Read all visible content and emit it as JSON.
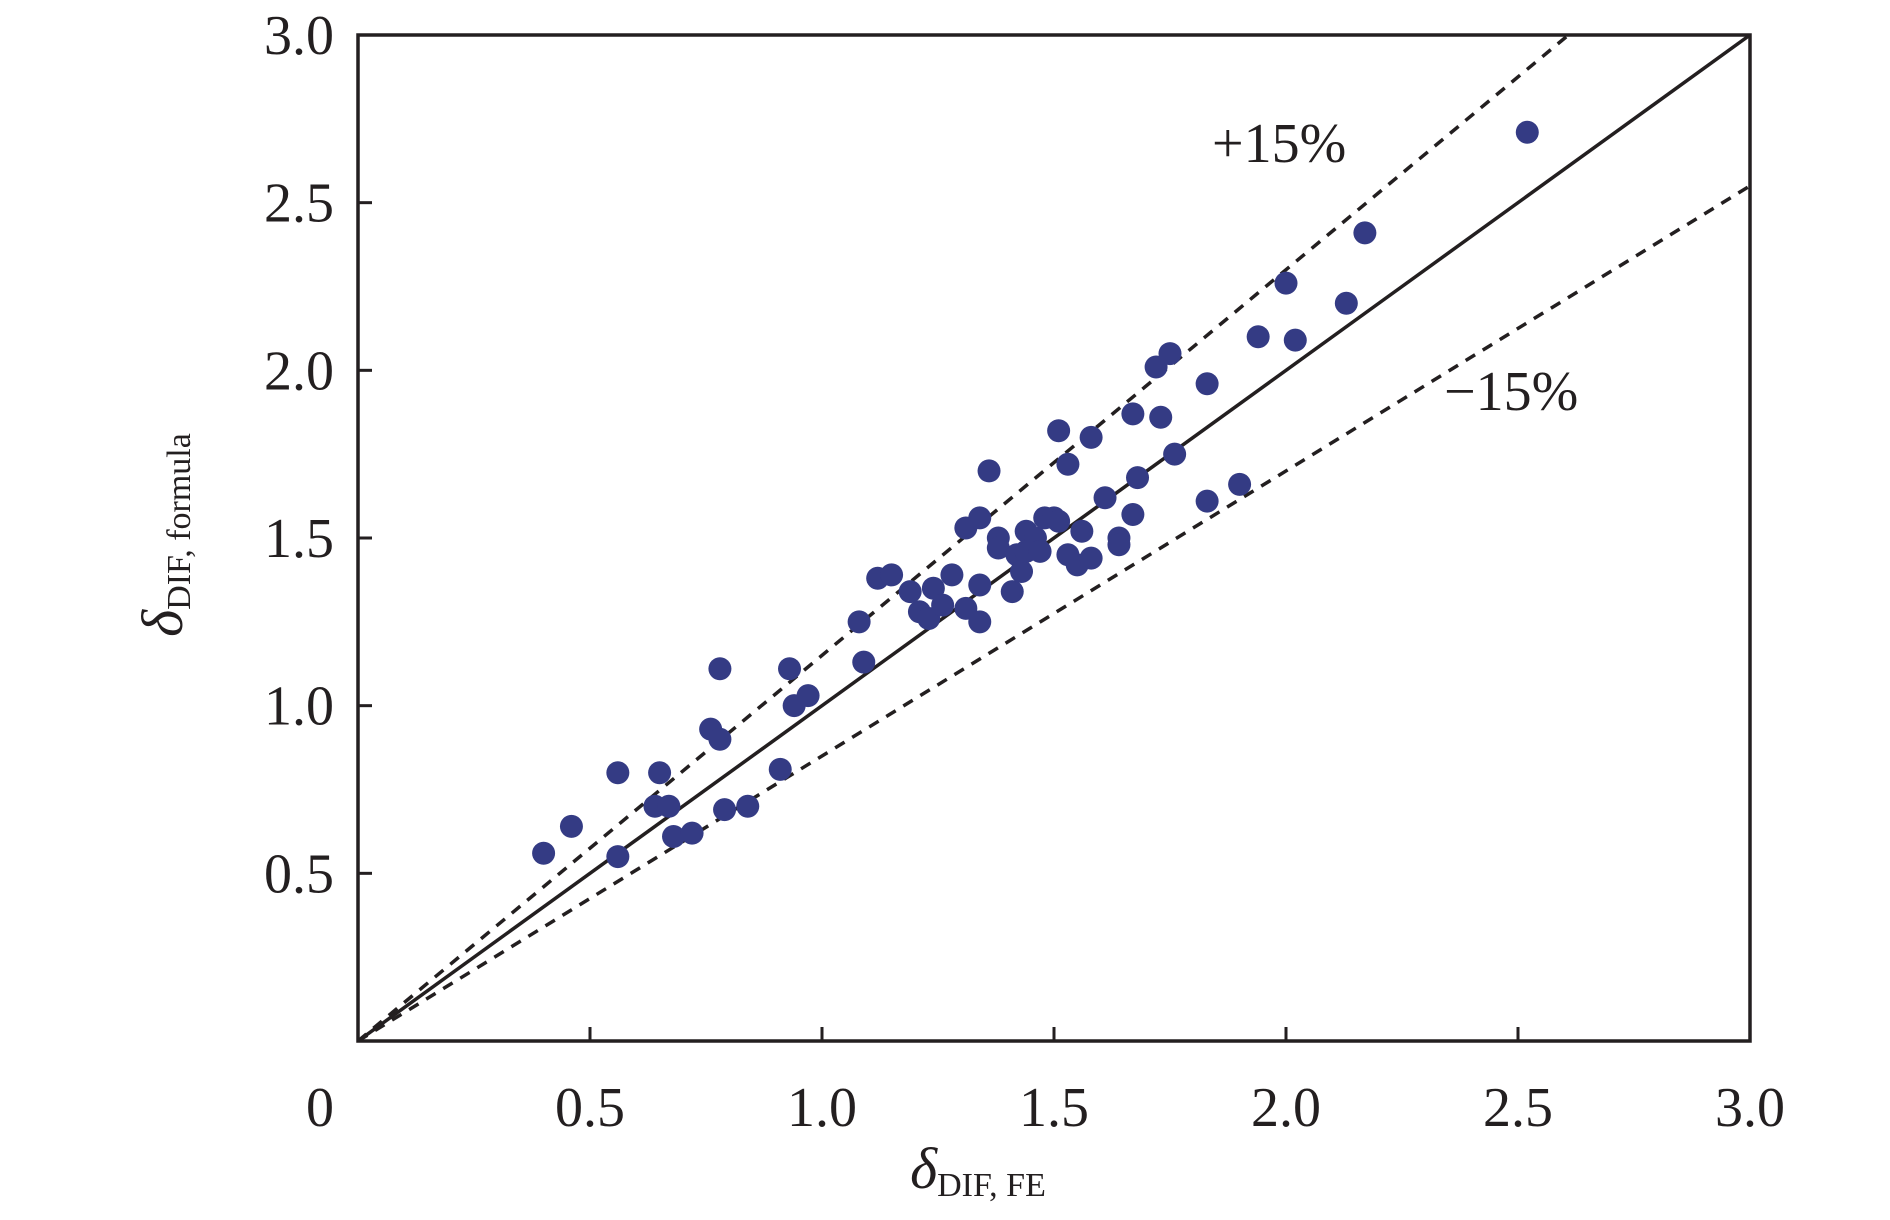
{
  "chart_data": {
    "type": "scatter",
    "xlabel": {
      "symbol": "δ",
      "subscript": "DIF, FE"
    },
    "ylabel": {
      "symbol": "δ",
      "subscript": "DIF, formula"
    },
    "xlim": [
      0,
      3.0
    ],
    "ylim": [
      0,
      3.0
    ],
    "xticks": [
      0,
      0.5,
      1.0,
      1.5,
      2.0,
      2.5,
      3.0
    ],
    "xtick_labels": [
      "0",
      "0.5",
      "1.0",
      "1.5",
      "2.0",
      "2.5",
      "3.0"
    ],
    "yticks": [
      0.5,
      1.0,
      1.5,
      2.0,
      2.5,
      3.0
    ],
    "ytick_labels": [
      "0.5",
      "1.0",
      "1.5",
      "2.0",
      "2.5",
      "3.0"
    ],
    "grid": false,
    "point_color": "#343b84",
    "reference_lines": [
      {
        "label": "",
        "slope": 1.0,
        "style": "solid"
      },
      {
        "label": "+15%",
        "slope": 1.15,
        "style": "dashed"
      },
      {
        "label": "−15%",
        "slope": 0.85,
        "style": "dashed"
      }
    ],
    "points": [
      [
        0.4,
        0.56
      ],
      [
        0.46,
        0.64
      ],
      [
        0.56,
        0.55
      ],
      [
        0.56,
        0.8
      ],
      [
        0.64,
        0.7
      ],
      [
        0.65,
        0.8
      ],
      [
        0.67,
        0.7
      ],
      [
        0.68,
        0.61
      ],
      [
        0.72,
        0.62
      ],
      [
        0.76,
        0.93
      ],
      [
        0.78,
        0.9
      ],
      [
        0.78,
        1.11
      ],
      [
        0.79,
        0.69
      ],
      [
        0.84,
        0.7
      ],
      [
        0.91,
        0.81
      ],
      [
        0.93,
        1.11
      ],
      [
        0.94,
        1.0
      ],
      [
        0.97,
        1.03
      ],
      [
        1.08,
        1.25
      ],
      [
        1.09,
        1.13
      ],
      [
        1.12,
        1.38
      ],
      [
        1.15,
        1.39
      ],
      [
        1.19,
        1.34
      ],
      [
        1.21,
        1.28
      ],
      [
        1.23,
        1.26
      ],
      [
        1.24,
        1.35
      ],
      [
        1.26,
        1.3
      ],
      [
        1.28,
        1.39
      ],
      [
        1.31,
        1.29
      ],
      [
        1.31,
        1.53
      ],
      [
        1.34,
        1.56
      ],
      [
        1.34,
        1.36
      ],
      [
        1.34,
        1.25
      ],
      [
        1.36,
        1.7
      ],
      [
        1.38,
        1.5
      ],
      [
        1.38,
        1.47
      ],
      [
        1.41,
        1.34
      ],
      [
        1.42,
        1.45
      ],
      [
        1.43,
        1.4
      ],
      [
        1.44,
        1.52
      ],
      [
        1.44,
        1.46
      ],
      [
        1.46,
        1.5
      ],
      [
        1.47,
        1.46
      ],
      [
        1.48,
        1.56
      ],
      [
        1.5,
        1.56
      ],
      [
        1.51,
        1.55
      ],
      [
        1.51,
        1.82
      ],
      [
        1.53,
        1.72
      ],
      [
        1.53,
        1.45
      ],
      [
        1.55,
        1.42
      ],
      [
        1.56,
        1.52
      ],
      [
        1.58,
        1.44
      ],
      [
        1.58,
        1.8
      ],
      [
        1.61,
        1.62
      ],
      [
        1.64,
        1.5
      ],
      [
        1.64,
        1.48
      ],
      [
        1.67,
        1.57
      ],
      [
        1.67,
        1.87
      ],
      [
        1.68,
        1.68
      ],
      [
        1.72,
        2.01
      ],
      [
        1.73,
        1.86
      ],
      [
        1.75,
        2.05
      ],
      [
        1.76,
        1.75
      ],
      [
        1.83,
        1.96
      ],
      [
        1.83,
        1.61
      ],
      [
        1.9,
        1.66
      ],
      [
        1.94,
        2.1
      ],
      [
        2.0,
        2.26
      ],
      [
        2.02,
        2.09
      ],
      [
        2.13,
        2.2
      ],
      [
        2.17,
        2.41
      ],
      [
        2.52,
        2.71
      ]
    ]
  }
}
